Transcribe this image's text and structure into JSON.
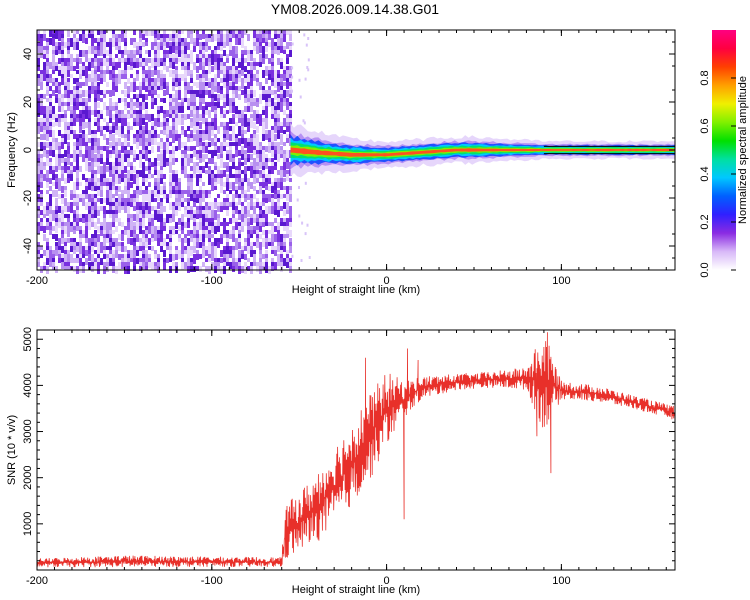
{
  "title": "YM08.2026.009.14.38.G01",
  "chart_data": [
    {
      "type": "heatmap",
      "panel": "top",
      "xlabel": "Height of straight line (km)",
      "ylabel": "Frequency (Hz)",
      "xlim": [
        -200,
        165
      ],
      "ylim": [
        -50,
        50
      ],
      "xticks": [
        -200,
        -100,
        0,
        100
      ],
      "xtick_labels": [
        "-200",
        "-100",
        "0",
        "100"
      ],
      "yticks": [
        -40,
        -20,
        0,
        20,
        40
      ],
      "ytick_labels": [
        "-40",
        "-20",
        "0",
        "20",
        "40"
      ],
      "noise_region_x": [
        -200,
        -55
      ],
      "signal_band": {
        "x_start": -55,
        "x_end": 165,
        "freq_center": [
          [
            -55,
            0
          ],
          [
            -40,
            -1
          ],
          [
            -20,
            -2
          ],
          [
            0,
            -2
          ],
          [
            20,
            -1
          ],
          [
            40,
            0
          ],
          [
            80,
            0
          ],
          [
            100,
            0
          ],
          [
            165,
            0
          ]
        ],
        "freq_halfwidth": [
          [
            -55,
            6
          ],
          [
            -30,
            4
          ],
          [
            0,
            3
          ],
          [
            50,
            3
          ],
          [
            90,
            2
          ],
          [
            140,
            2
          ],
          [
            165,
            2
          ]
        ]
      },
      "colorbar": {
        "label": "Normalized spectral amplitude",
        "range": [
          0.0,
          1.0
        ],
        "ticks": [
          0.0,
          0.2,
          0.4,
          0.6,
          0.8
        ],
        "tick_labels": [
          "0.0",
          "0.2",
          "0.4",
          "0.6",
          "0.8"
        ],
        "colors": [
          "#ffffff",
          "#d8b8f8",
          "#8a2be2",
          "#3020ff",
          "#0060ff",
          "#00c8ff",
          "#00e0a0",
          "#00e000",
          "#80f000",
          "#f0f000",
          "#ffa000",
          "#ff4000",
          "#ff0040",
          "#ff0080"
        ]
      }
    },
    {
      "type": "line",
      "panel": "bottom",
      "xlabel": "Height of straight line (km)",
      "ylabel": "SNR (10 * v/v)",
      "xlim": [
        -200,
        165
      ],
      "ylim": [
        0,
        5200
      ],
      "xticks": [
        -200,
        -100,
        0,
        100
      ],
      "xtick_labels": [
        "-200",
        "-100",
        "0",
        "100"
      ],
      "yticks": [
        1000,
        2000,
        3000,
        4000,
        5000
      ],
      "ytick_labels": [
        "1000",
        "2000",
        "3000",
        "4000",
        "5000"
      ],
      "series": [
        {
          "name": "SNR",
          "color": "#e8302a",
          "envelope_x": [
            -200,
            -150,
            -100,
            -60,
            -58,
            -50,
            -40,
            -30,
            -20,
            -10,
            0,
            10,
            20,
            40,
            60,
            80,
            90,
            100,
            120,
            140,
            165
          ],
          "envelope_low": [
            60,
            60,
            70,
            60,
            200,
            400,
            600,
            900,
            1400,
            1900,
            2700,
            3300,
            3700,
            3900,
            3950,
            3900,
            3000,
            3700,
            3650,
            3500,
            3250
          ],
          "envelope_high": [
            250,
            320,
            290,
            280,
            1400,
            1700,
            2100,
            2700,
            3200,
            3800,
            4300,
            4100,
            4200,
            4250,
            4300,
            4400,
            5200,
            4100,
            4000,
            3800,
            3550
          ],
          "spikes": [
            [
              -12,
              4600
            ],
            [
              10,
              1100
            ],
            [
              12,
              4800
            ],
            [
              18,
              4550
            ],
            [
              86,
              2900
            ],
            [
              92,
              5150
            ],
            [
              94,
              2100
            ]
          ]
        }
      ]
    }
  ]
}
